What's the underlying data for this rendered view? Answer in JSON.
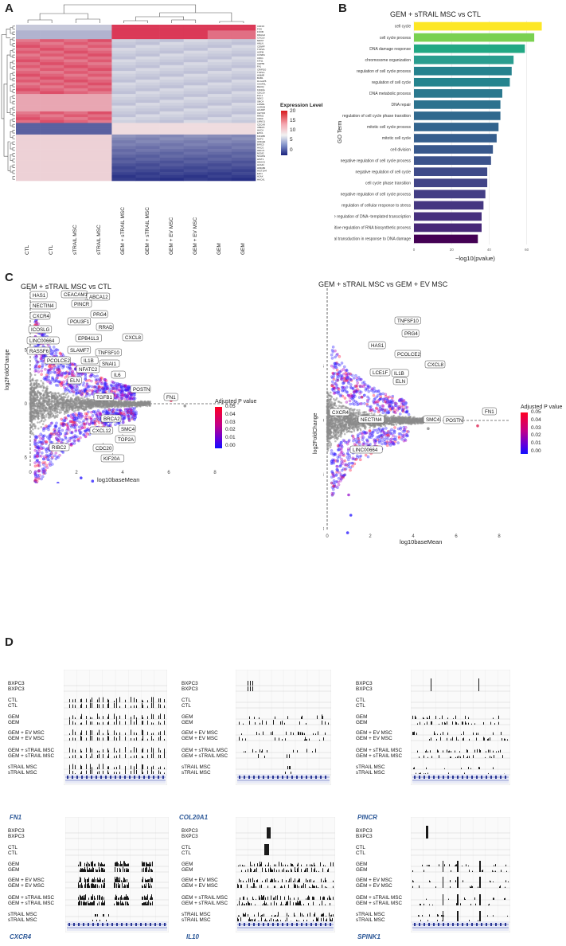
{
  "panels": {
    "a": "A",
    "b": "B",
    "c": "C",
    "d": "D"
  },
  "heatmap": {
    "columns": [
      "CTL",
      "CTL",
      "sTRAIL MSC",
      "sTRAIL MSC",
      "GEM + sTRAIL MSC",
      "GEM + sTRAIL MSC",
      "GEM + EV MSC",
      "GEM + EV MSC",
      "GEM",
      "GEM"
    ],
    "genes": [
      "CDF15",
      "FOS",
      "FOXB",
      "DRAG2",
      "CXCL6",
      "MKI67",
      "ANLN",
      "CENPF",
      "TOP2A",
      "ASPM",
      "CCNB1",
      "CDK1",
      "KIF11",
      "CEP55",
      "FA1",
      "CRIPDO",
      "TOP1A",
      "HMMR",
      "BUB1",
      "DLGAP5",
      "CKAP2L",
      "RHOQ",
      "KIF20A",
      "CDC20",
      "PLK1",
      "NEK2",
      "SMC4",
      "LMNB1",
      "AURKB",
      "HJURP",
      "CHTFR",
      "RRM2",
      "CDKF",
      "LMNO1",
      "CDCA8",
      "UBE2C",
      "HACA",
      "EPC1",
      "KIF18B",
      "NUF2",
      "HMGE2",
      "BIRC5",
      "HACG",
      "HELLS",
      "MCM2",
      "NCAPH",
      "HIST1",
      "HDAC5",
      "H2AZ1",
      "HMGB2",
      "HIST1H4",
      "E2F1",
      "H2AX",
      "HACA1"
    ],
    "legend": {
      "title": "Expression Level",
      "ticks": [
        "20",
        "15",
        "10",
        "5",
        "0"
      ],
      "colors": {
        "high": "#d7191c",
        "mid": "#f2f2f2",
        "low": "#1a237e"
      }
    }
  },
  "go_chart": {
    "chart_data": {
      "type": "bar",
      "title": "GEM + sTRAIL MSC vs CTL",
      "xlabel": "−log10(pvalue)",
      "ylabel": "GO Term",
      "categories": [
        "cell cycle",
        "cell cycle process",
        "DNA damage response",
        "chromosome organization",
        "regulation of cell cycle process",
        "regulation of cell cycle",
        "DNA metabolic process",
        "DNA repair",
        "regulation of cell cycle phase transition",
        "mitotic cell cycle process",
        "mitotic cell cycle",
        "cell division",
        "negative regulation of cell cycle process",
        "negative regulation of cell cycle",
        "cell cycle phase transition",
        "negative regulation of cell cycle process",
        "regulation of cellular response to stress",
        "positive regulation of DNA−templated transcription",
        "positive regulation of RNA biosynthetic process",
        "signal transduction in response to DNA damage"
      ],
      "values": [
        68,
        64,
        59,
        53,
        52,
        51,
        47,
        46,
        46,
        45,
        44,
        42,
        41,
        39,
        39,
        38,
        37,
        36,
        36,
        34
      ],
      "xticks": [
        "0",
        "20",
        "40",
        "60"
      ],
      "xlim": [
        0,
        72
      ],
      "colors": [
        "#fde725",
        "#7ad151",
        "#22a884",
        "#2a9d8f",
        "#26828e",
        "#25848e",
        "#2a788e",
        "#2c728e",
        "#30698e",
        "#32648e",
        "#355e8d",
        "#38588c",
        "#3b528b",
        "#3e4a89",
        "#414487",
        "#433e85",
        "#453781",
        "#46307e",
        "#472878",
        "#440154"
      ]
    }
  },
  "ma_left": {
    "title": "GEM + sTRAIL MSC vs CTL",
    "xlabel": "log10baseMean",
    "ylabel": "log2FoldChange",
    "xticks": [
      "0",
      "2",
      "4",
      "6",
      "8"
    ],
    "yticks": [
      "5",
      "0",
      "−5"
    ],
    "genes": [
      "HAS1",
      "CEACAM1",
      "ABCA12",
      "NECTIN4",
      "PINCR",
      "PRG4",
      "CXCR4",
      "POU3F1",
      "RRAD",
      "ICOSLG",
      "LINC00664",
      "EPB41L3",
      "CXCL8",
      "RASSF6",
      "SLAMF7",
      "TNFSF10",
      "PCOLCE2",
      "IL1B",
      "SNAI1",
      "NFATC2",
      "IL6",
      "ELN",
      "POSTN",
      "FN1",
      "TGFB1",
      "BRCA2",
      "CXCL12",
      "SMC4",
      "RIBC2",
      "CDC20",
      "TOP2A",
      "KIF20A"
    ]
  },
  "ma_right": {
    "title": "GEM + sTRAIL MSC vs GEM + EV MSC",
    "xlabel": "log10baseMean",
    "ylabel": "log2FoldChange",
    "xticks": [
      "0",
      "2",
      "4",
      "6",
      "8"
    ],
    "yticks": [
      "4",
      "0",
      "−4",
      "−8"
    ],
    "genes": [
      "TNFSF10",
      "PRG4",
      "HAS1",
      "PCOLCE2",
      "CXCL8",
      "LCE1F",
      "IL1B",
      "ELN",
      "FN1",
      "CXCR4",
      "NECTIN4",
      "SMC4",
      "POSTN",
      "LINC00664"
    ]
  },
  "padj_legend": {
    "title": "Adjusted P value",
    "ticks": [
      "0.05",
      "0.04",
      "0.03",
      "0.02",
      "0.01",
      "0.00"
    ]
  },
  "tracks": {
    "names": [
      "BXPC3",
      "BXPC3",
      "CTL",
      "CTL",
      "GEM",
      "GEM",
      "GEM + EV MSC",
      "GEM + EV MSC",
      "GEM + sTRAIL MSC",
      "GEM + sTRAIL MSC",
      "sTRAIL MSC",
      "sTRAIL MSC"
    ],
    "genes": [
      "FN1",
      "COL20A1",
      "PINCR",
      "CXCR4",
      "IL10",
      "SPINK1"
    ]
  }
}
